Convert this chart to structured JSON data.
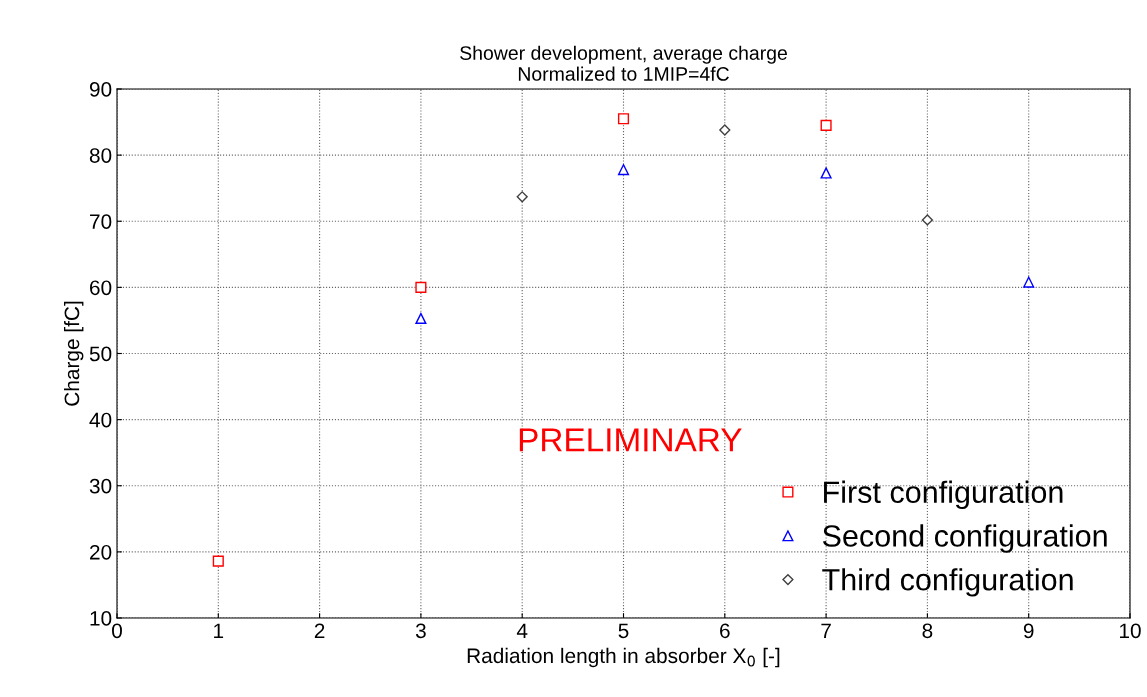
{
  "chart_data": {
    "type": "scatter",
    "title": "Shower development, average charge",
    "subtitle": "Normalized to 1MIP=4fC",
    "xlabel": "Radiation length in absorber X$_{0}$ [-]",
    "ylabel": "Charge [fC]",
    "series": [
      {
        "name": "First configuration",
        "color": "#ff0000",
        "marker": "square",
        "x": [
          1,
          3,
          5,
          7
        ],
        "values": [
          18.6,
          60,
          85.5,
          84.5
        ]
      },
      {
        "name": "Second configuration",
        "color": "#0000ff",
        "marker": "triangle",
        "x": [
          3,
          5,
          7,
          9
        ],
        "values": [
          55.3,
          77.8,
          77.3,
          60.8
        ]
      },
      {
        "name": "Third configuration",
        "color": "#404040",
        "marker": "diamond",
        "x": [
          4,
          6,
          8
        ],
        "values": [
          73.7,
          83.8,
          70.2
        ]
      }
    ],
    "xlim": [
      0,
      10
    ],
    "xticks": [
      0,
      1,
      2,
      3,
      4,
      5,
      6,
      7,
      8,
      9,
      10
    ],
    "ylim": [
      10,
      90
    ],
    "yticks": [
      10,
      20,
      30,
      40,
      50,
      60,
      70,
      80,
      90
    ],
    "grid": true,
    "legend": "bottom right",
    "annotations": [
      "PRELIMINARY"
    ]
  }
}
